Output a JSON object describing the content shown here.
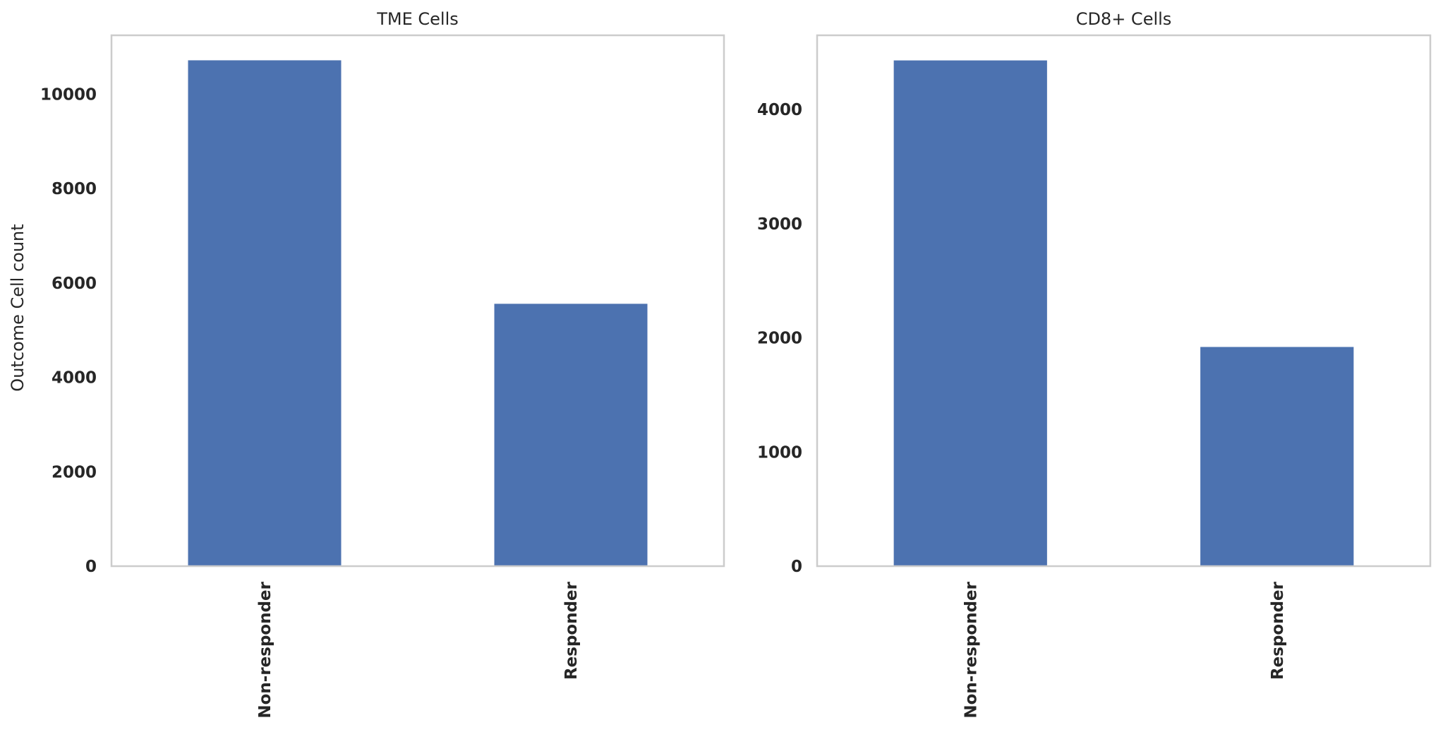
{
  "chart_data": [
    {
      "type": "bar",
      "title": "TME Cells",
      "ylabel": "Outcome  Cell count",
      "xlabel": "",
      "categories": [
        "Non-responder",
        "Responder"
      ],
      "values": [
        10720,
        5560
      ],
      "ylim": [
        0,
        11250
      ],
      "yticks": [
        0,
        2000,
        4000,
        6000,
        8000,
        10000
      ],
      "grid": false,
      "bar_color": "#4c72b0"
    },
    {
      "type": "bar",
      "title": "CD8+ Cells",
      "ylabel": "",
      "xlabel": "",
      "categories": [
        "Non-responder",
        "Responder"
      ],
      "values": [
        4430,
        1920
      ],
      "ylim": [
        0,
        4650
      ],
      "yticks": [
        0,
        1000,
        2000,
        3000,
        4000
      ],
      "grid": false,
      "bar_color": "#4c72b0"
    }
  ]
}
